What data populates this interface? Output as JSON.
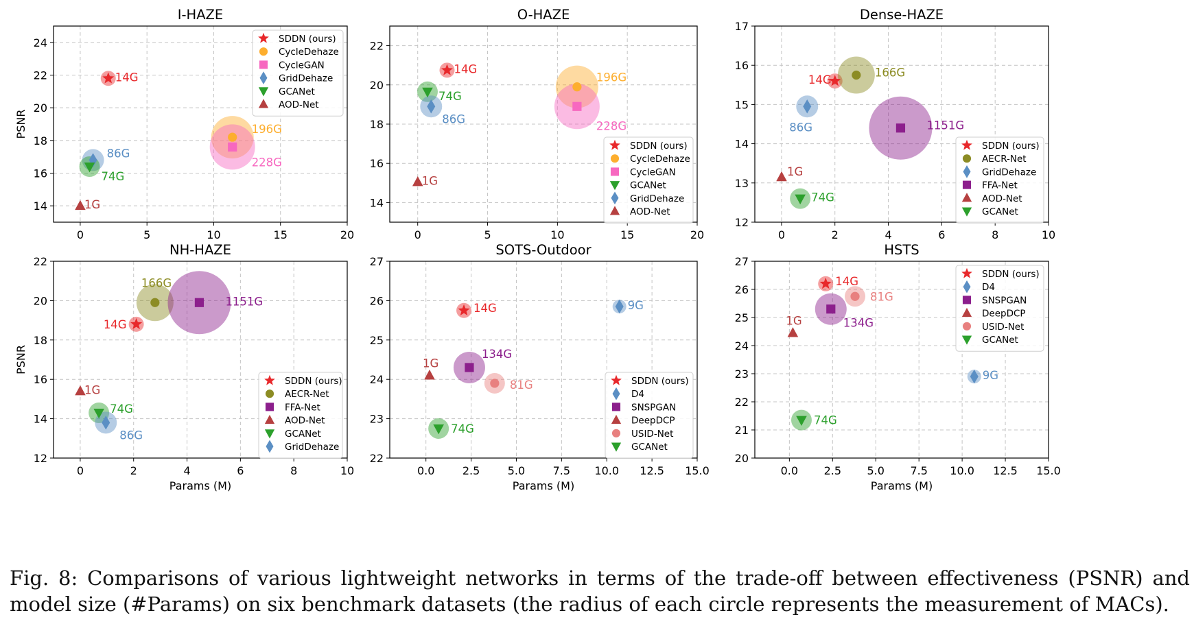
{
  "figure_caption": "Fig. 8: Comparisons of various lightweight networks in terms of the trade-off between effectiveness (PSNR) and model size (#Params) on six benchmark datasets (the radius of each circle represents the measurement of MACs).",
  "colors": {
    "SDDN (ours)": "#e8282b",
    "CycleDehaze": "#fdae2e",
    "CycleGAN": "#f768c0",
    "GridDehaze": "#5b8fc4",
    "GCANet": "#2ca02c",
    "AOD-Net": "#b64040",
    "AECR-Net": "#8c8c24",
    "FFA-Net": "#8c1f8c",
    "D4": "#5b8fc4",
    "SNSPGAN": "#8c1f8c",
    "DeepDCP": "#b64040",
    "USID-Net": "#e8807f"
  },
  "chart_data": [
    {
      "type": "scatter",
      "title": "I-HAZE",
      "xlabel": "",
      "ylabel": "PSNR",
      "xlim": [
        -2,
        20
      ],
      "ylim": [
        13,
        25
      ],
      "xticks": [
        0,
        5,
        10,
        15,
        20
      ],
      "yticks": [
        14,
        16,
        18,
        20,
        22,
        24
      ],
      "grid": true,
      "legend_position": "upper-right",
      "series": [
        {
          "name": "SDDN (ours)",
          "marker": "star",
          "x": 2.1,
          "y": 21.8,
          "macs": "14G",
          "macs_value": 14
        },
        {
          "name": "CycleDehaze",
          "marker": "circle",
          "x": 11.4,
          "y": 18.2,
          "macs": "196G",
          "macs_value": 196
        },
        {
          "name": "CycleGAN",
          "marker": "square",
          "x": 11.4,
          "y": 17.6,
          "macs": "228G",
          "macs_value": 228
        },
        {
          "name": "GridDehaze",
          "marker": "diamond",
          "x": 0.96,
          "y": 16.8,
          "macs": "86G",
          "macs_value": 86
        },
        {
          "name": "GCANet",
          "marker": "triangle-down",
          "x": 0.7,
          "y": 16.4,
          "macs": "74G",
          "macs_value": 74
        },
        {
          "name": "AOD-Net",
          "marker": "triangle-up",
          "x": 0.002,
          "y": 14.0,
          "macs": "1G",
          "macs_value": 1
        }
      ]
    },
    {
      "type": "scatter",
      "title": "O-HAZE",
      "xlabel": "",
      "ylabel": "",
      "xlim": [
        -2,
        20
      ],
      "ylim": [
        13,
        23
      ],
      "xticks": [
        0,
        5,
        10,
        15,
        20
      ],
      "yticks": [
        14,
        16,
        18,
        20,
        22
      ],
      "grid": true,
      "legend_position": "lower-right",
      "series": [
        {
          "name": "SDDN (ours)",
          "marker": "star",
          "x": 2.1,
          "y": 20.75,
          "macs": "14G",
          "macs_value": 14
        },
        {
          "name": "CycleDehaze",
          "marker": "circle",
          "x": 11.4,
          "y": 19.9,
          "macs": "196G",
          "macs_value": 196
        },
        {
          "name": "CycleGAN",
          "marker": "square",
          "x": 11.4,
          "y": 18.9,
          "macs": "228G",
          "macs_value": 228
        },
        {
          "name": "GCANet",
          "marker": "triangle-down",
          "x": 0.7,
          "y": 19.65,
          "macs": "74G",
          "macs_value": 74
        },
        {
          "name": "GridDehaze",
          "marker": "diamond",
          "x": 0.96,
          "y": 18.9,
          "macs": "86G",
          "macs_value": 86
        },
        {
          "name": "AOD-Net",
          "marker": "triangle-up",
          "x": 0.002,
          "y": 15.05,
          "macs": "1G",
          "macs_value": 1
        }
      ]
    },
    {
      "type": "scatter",
      "title": "Dense-HAZE",
      "xlabel": "",
      "ylabel": "",
      "xlim": [
        -1,
        10
      ],
      "ylim": [
        12,
        17
      ],
      "xticks": [
        0,
        2,
        4,
        6,
        8,
        10
      ],
      "yticks": [
        12,
        13,
        14,
        15,
        16,
        17
      ],
      "grid": true,
      "legend_position": "lower-right",
      "series": [
        {
          "name": "SDDN (ours)",
          "marker": "star",
          "x": 2.0,
          "y": 15.6,
          "macs": "14G",
          "macs_value": 14
        },
        {
          "name": "AECR-Net",
          "marker": "circle",
          "x": 2.8,
          "y": 15.75,
          "macs": "166G",
          "macs_value": 166
        },
        {
          "name": "GridDehaze",
          "marker": "diamond",
          "x": 0.96,
          "y": 14.95,
          "macs": "86G",
          "macs_value": 86
        },
        {
          "name": "FFA-Net",
          "marker": "square",
          "x": 4.46,
          "y": 14.4,
          "macs": "1151G",
          "macs_value": 1151
        },
        {
          "name": "AOD-Net",
          "marker": "triangle-up",
          "x": 0.002,
          "y": 13.15,
          "macs": "1G",
          "macs_value": 1
        },
        {
          "name": "GCANet",
          "marker": "triangle-down",
          "x": 0.7,
          "y": 12.6,
          "macs": "74G",
          "macs_value": 74
        }
      ]
    },
    {
      "type": "scatter",
      "title": "NH-HAZE",
      "xlabel": "Params (M)",
      "ylabel": "PSNR",
      "xlim": [
        -1,
        10
      ],
      "ylim": [
        12,
        22
      ],
      "xticks": [
        0,
        2,
        4,
        6,
        8,
        10
      ],
      "yticks": [
        12,
        14,
        16,
        18,
        20,
        22
      ],
      "grid": true,
      "legend_position": "lower-right",
      "series": [
        {
          "name": "SDDN (ours)",
          "marker": "star",
          "x": 2.1,
          "y": 18.8,
          "macs": "14G",
          "macs_value": 14
        },
        {
          "name": "AECR-Net",
          "marker": "circle",
          "x": 2.8,
          "y": 19.9,
          "macs": "166G",
          "macs_value": 166
        },
        {
          "name": "FFA-Net",
          "marker": "square",
          "x": 4.46,
          "y": 19.9,
          "macs": "1151G",
          "macs_value": 1151
        },
        {
          "name": "AOD-Net",
          "marker": "triangle-up",
          "x": 0.002,
          "y": 15.4,
          "macs": "1G",
          "macs_value": 1
        },
        {
          "name": "GCANet",
          "marker": "triangle-down",
          "x": 0.7,
          "y": 14.3,
          "macs": "74G",
          "macs_value": 74
        },
        {
          "name": "GridDehaze",
          "marker": "diamond",
          "x": 0.96,
          "y": 13.8,
          "macs": "86G",
          "macs_value": 86
        }
      ]
    },
    {
      "type": "scatter",
      "title": "SOTS-Outdoor",
      "xlabel": "Params (M)",
      "ylabel": "",
      "xlim": [
        -2,
        15
      ],
      "ylim": [
        22,
        27
      ],
      "xticks": [
        0.0,
        2.5,
        5.0,
        7.5,
        10.0,
        12.5,
        15.0
      ],
      "xtick_labels": [
        "0.0",
        "2.5",
        "5.0",
        "7.5",
        "10.0",
        "12.5",
        "15.0"
      ],
      "yticks": [
        22,
        23,
        24,
        25,
        26,
        27
      ],
      "grid": true,
      "legend_position": "lower-right",
      "series": [
        {
          "name": "SDDN (ours)",
          "marker": "star",
          "x": 2.1,
          "y": 25.75,
          "macs": "14G",
          "macs_value": 14
        },
        {
          "name": "D4",
          "marker": "diamond",
          "x": 10.7,
          "y": 25.85,
          "macs": "9G",
          "macs_value": 9
        },
        {
          "name": "SNSPGAN",
          "marker": "square",
          "x": 2.4,
          "y": 24.3,
          "macs": "134G",
          "macs_value": 134
        },
        {
          "name": "DeepDCP",
          "marker": "triangle-up",
          "x": 0.2,
          "y": 24.1,
          "macs": "1G",
          "macs_value": 1
        },
        {
          "name": "USID-Net",
          "marker": "circle",
          "x": 3.8,
          "y": 23.9,
          "macs": "81G",
          "macs_value": 81
        },
        {
          "name": "GCANet",
          "marker": "triangle-down",
          "x": 0.7,
          "y": 22.75,
          "macs": "74G",
          "macs_value": 74
        }
      ]
    },
    {
      "type": "scatter",
      "title": "HSTS",
      "xlabel": "Params (M)",
      "ylabel": "",
      "xlim": [
        -2,
        15
      ],
      "ylim": [
        20,
        27
      ],
      "xticks": [
        0.0,
        2.5,
        5.0,
        7.5,
        10.0,
        12.5,
        15.0
      ],
      "xtick_labels": [
        "0.0",
        "2.5",
        "5.0",
        "7.5",
        "10.0",
        "12.5",
        "15.0"
      ],
      "yticks": [
        20,
        21,
        22,
        23,
        24,
        25,
        26,
        27
      ],
      "grid": true,
      "legend_position": "upper-right",
      "series": [
        {
          "name": "SDDN (ours)",
          "marker": "star",
          "x": 2.1,
          "y": 26.2,
          "macs": "14G",
          "macs_value": 14
        },
        {
          "name": "D4",
          "marker": "diamond",
          "x": 10.7,
          "y": 22.9,
          "macs": "9G",
          "macs_value": 9
        },
        {
          "name": "SNSPGAN",
          "marker": "square",
          "x": 2.4,
          "y": 25.3,
          "macs": "134G",
          "macs_value": 134
        },
        {
          "name": "DeepDCP",
          "marker": "triangle-up",
          "x": 0.2,
          "y": 24.45,
          "macs": "1G",
          "macs_value": 1
        },
        {
          "name": "USID-Net",
          "marker": "circle",
          "x": 3.8,
          "y": 25.75,
          "macs": "81G",
          "macs_value": 81
        },
        {
          "name": "GCANet",
          "marker": "triangle-down",
          "x": 0.7,
          "y": 21.35,
          "macs": "74G",
          "macs_value": 74
        }
      ]
    }
  ]
}
